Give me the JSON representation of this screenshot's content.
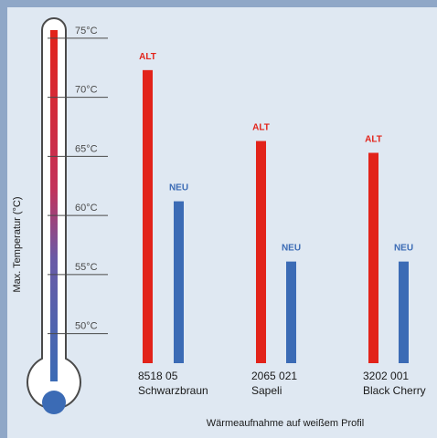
{
  "chart_data": {
    "type": "bar",
    "title": "",
    "xlabel": "Wärmeaufnahme auf weißem Profil",
    "ylabel": "Max. Temperatur (°C)",
    "ylim": [
      47.5,
      77.5
    ],
    "yticks": [
      50,
      55,
      60,
      65,
      70,
      75
    ],
    "tick_labels": [
      "50°C",
      "55°C",
      "60°C",
      "65°C",
      "70°C",
      "75°C"
    ],
    "categories": [
      {
        "code": "8518 05",
        "name": "Schwarzbraun"
      },
      {
        "code": "2065 021",
        "name": "Sapeli"
      },
      {
        "code": "3202 001",
        "name": "Black Cherry"
      }
    ],
    "series": [
      {
        "name": "ALT",
        "values": [
          72.3,
          66.3,
          65.3
        ]
      },
      {
        "name": "NEU",
        "values": [
          61.2,
          56.1,
          56.1
        ]
      }
    ],
    "colors": {
      "ALT": "#e2231a",
      "NEU": "#3b6bb5"
    }
  }
}
